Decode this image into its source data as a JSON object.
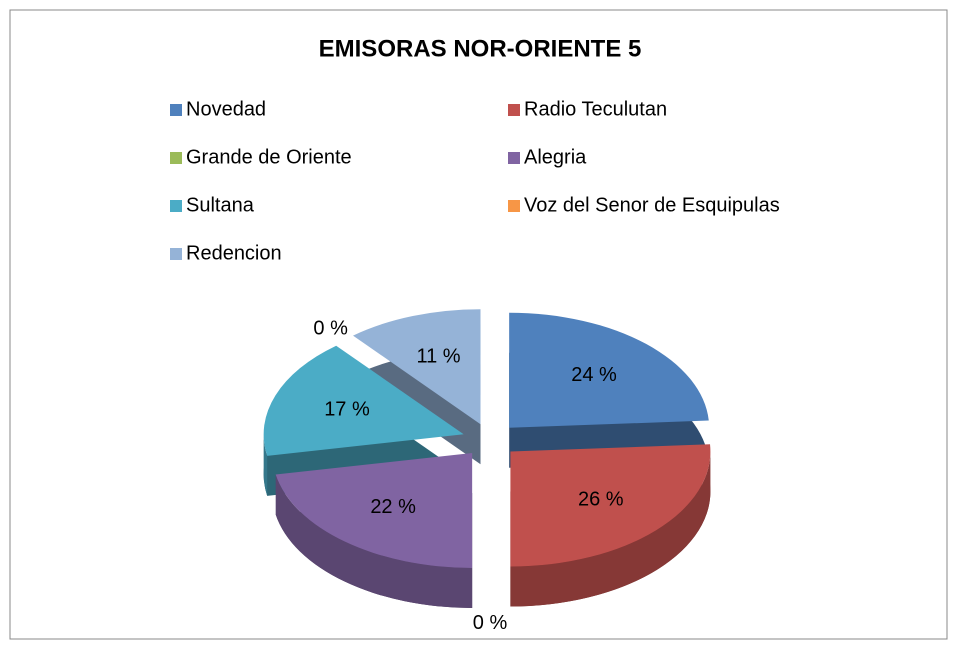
{
  "chart_data": {
    "type": "pie",
    "title": "EMISORAS NOR-ORIENTE 5",
    "categories": [
      "Novedad",
      "Radio Teculutan",
      "Grande de Oriente",
      "Alegria",
      "Sultana",
      "Voz del Senor de Esquipulas",
      "Redencion"
    ],
    "values": [
      24,
      26,
      0,
      22,
      17,
      0,
      11
    ],
    "value_labels": [
      "24 %",
      "26 %",
      "0 %",
      "22 %",
      "17 %",
      "0 %",
      "11 %"
    ],
    "colors": [
      "#4f81bd",
      "#c0504d",
      "#9bbb59",
      "#8064a2",
      "#4bacc6",
      "#f79646",
      "#95b3d7"
    ],
    "legend": "top"
  }
}
